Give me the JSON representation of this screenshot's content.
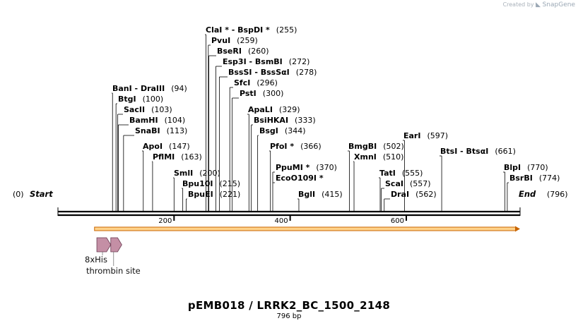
{
  "credit": {
    "created_by": "Created by",
    "brand": "SnapGene",
    "logo_icon": "snapgene-logo-icon"
  },
  "plasmid": {
    "title": "pEMB018 / LRRK2_BC_1500_2148",
    "length_label": "796 bp",
    "length": 796
  },
  "colors": {
    "backbone": "#000000",
    "orf_fill": "#ffd28a",
    "orf_stroke": "#c86400",
    "feature_fill": "#c48fa5",
    "feature_stroke": "#6b3b52"
  },
  "ends": {
    "start_pos": "(0)",
    "start_label": "Start",
    "end_label": "End",
    "end_pos": "(796)"
  },
  "scale_ticks": [
    {
      "pos": 200,
      "label": "200"
    },
    {
      "pos": 400,
      "label": "400"
    },
    {
      "pos": 600,
      "label": "600"
    }
  ],
  "sites": [
    {
      "names": [
        "ClaI *",
        "BspDI *"
      ],
      "position": 255,
      "pos_label": "(255)"
    },
    {
      "names": [
        "PvuI"
      ],
      "position": 259,
      "pos_label": "(259)"
    },
    {
      "names": [
        "BseRI"
      ],
      "position": 260,
      "pos_label": "(260)"
    },
    {
      "names": [
        "Esp3I",
        "BsmBI"
      ],
      "position": 272,
      "pos_label": "(272)"
    },
    {
      "names": [
        "BssSI",
        "BssSαI"
      ],
      "position": 278,
      "pos_label": "(278)"
    },
    {
      "names": [
        "SfcI"
      ],
      "position": 296,
      "pos_label": "(296)"
    },
    {
      "names": [
        "PstI"
      ],
      "position": 300,
      "pos_label": "(300)"
    },
    {
      "names": [
        "BanI",
        "DraIII"
      ],
      "position": 94,
      "pos_label": "(94)"
    },
    {
      "names": [
        "BtgI"
      ],
      "position": 100,
      "pos_label": "(100)"
    },
    {
      "names": [
        "SacII"
      ],
      "position": 103,
      "pos_label": "(103)"
    },
    {
      "names": [
        "BamHI"
      ],
      "position": 104,
      "pos_label": "(104)"
    },
    {
      "names": [
        "SnaBI"
      ],
      "position": 113,
      "pos_label": "(113)"
    },
    {
      "names": [
        "ApoI"
      ],
      "position": 147,
      "pos_label": "(147)"
    },
    {
      "names": [
        "PflMI"
      ],
      "position": 163,
      "pos_label": "(163)"
    },
    {
      "names": [
        "SmlI"
      ],
      "position": 200,
      "pos_label": "(200)"
    },
    {
      "names": [
        "Bpu10I"
      ],
      "position": 215,
      "pos_label": "(215)"
    },
    {
      "names": [
        "BpuEI"
      ],
      "position": 221,
      "pos_label": "(221)"
    },
    {
      "names": [
        "ApaLI"
      ],
      "position": 329,
      "pos_label": "(329)"
    },
    {
      "names": [
        "BsiHKAI"
      ],
      "position": 333,
      "pos_label": "(333)"
    },
    {
      "names": [
        "BsgI"
      ],
      "position": 344,
      "pos_label": "(344)"
    },
    {
      "names": [
        "PfoI *"
      ],
      "position": 366,
      "pos_label": "(366)"
    },
    {
      "names": [
        "PpuMI *"
      ],
      "position": 370,
      "pos_label": "(370)"
    },
    {
      "names": [
        "EcoO109I *"
      ],
      "position": 370,
      "pos_label": ""
    },
    {
      "names": [
        "BglI"
      ],
      "position": 415,
      "pos_label": "(415)"
    },
    {
      "names": [
        "BmgBI"
      ],
      "position": 502,
      "pos_label": "(502)"
    },
    {
      "names": [
        "XmnI"
      ],
      "position": 510,
      "pos_label": "(510)"
    },
    {
      "names": [
        "EarI"
      ],
      "position": 597,
      "pos_label": "(597)"
    },
    {
      "names": [
        "BtsI",
        "BtsαI"
      ],
      "position": 661,
      "pos_label": "(661)"
    },
    {
      "names": [
        "TatI"
      ],
      "position": 555,
      "pos_label": "(555)"
    },
    {
      "names": [
        "ScaI"
      ],
      "position": 557,
      "pos_label": "(557)"
    },
    {
      "names": [
        "DraI"
      ],
      "position": 562,
      "pos_label": "(562)"
    },
    {
      "names": [
        "BlpI"
      ],
      "position": 770,
      "pos_label": "(770)"
    },
    {
      "names": [
        "BsrBI"
      ],
      "position": 774,
      "pos_label": "(774)"
    }
  ],
  "features": [
    {
      "name": "8xHis",
      "start": 67,
      "end": 91
    },
    {
      "name": "thrombin site",
      "start": 91,
      "end": 110
    }
  ],
  "orf": {
    "start": 63,
    "end": 796
  }
}
